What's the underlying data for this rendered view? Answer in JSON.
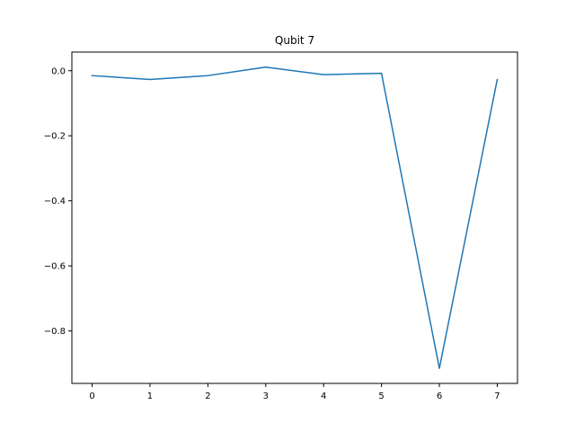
{
  "chart_data": {
    "type": "line",
    "title": "Qubit 7",
    "xlabel": "",
    "ylabel": "",
    "x": [
      0,
      1,
      2,
      3,
      4,
      5,
      6,
      7
    ],
    "series": [
      {
        "values": [
          -0.015,
          -0.027,
          -0.015,
          0.011,
          -0.012,
          -0.008,
          -0.915,
          -0.027
        ],
        "color": "#1f77b4"
      }
    ],
    "xticks": [
      0,
      1,
      2,
      3,
      4,
      5,
      6,
      7
    ],
    "xtick_labels": [
      "0",
      "1",
      "2",
      "3",
      "4",
      "5",
      "6",
      "7"
    ],
    "yticks": [
      0.0,
      -0.2,
      -0.4,
      -0.6,
      -0.8
    ],
    "ytick_labels": [
      "0.0",
      "−0.2",
      "−0.4",
      "−0.6",
      "−0.8"
    ],
    "xlim": [
      -0.35,
      7.35
    ],
    "ylim": [
      -0.9613,
      0.0573
    ],
    "grid": false,
    "legend": "none"
  }
}
